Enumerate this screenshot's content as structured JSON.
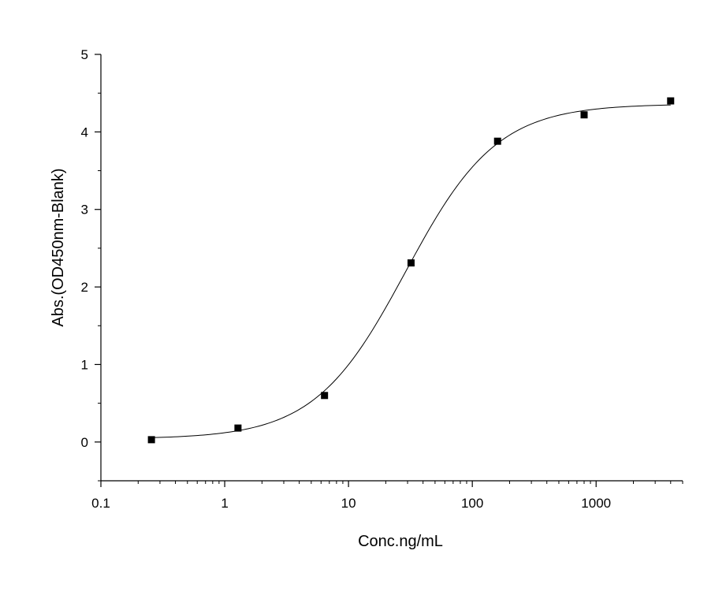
{
  "chart_data": {
    "type": "scatter",
    "xscale": "log",
    "xlim": [
      0.1,
      5000
    ],
    "ylim": [
      -0.5,
      5
    ],
    "xlabel": "Conc.ng/mL",
    "ylabel": "Abs.(OD450nm-Blank)",
    "xticks": [
      {
        "value": 0.1,
        "label": "0.1"
      },
      {
        "value": 1,
        "label": "1"
      },
      {
        "value": 10,
        "label": "10"
      },
      {
        "value": 100,
        "label": "100"
      },
      {
        "value": 1000,
        "label": "1000"
      }
    ],
    "yticks": [
      {
        "value": 0,
        "label": "0"
      },
      {
        "value": 1,
        "label": "1"
      },
      {
        "value": 2,
        "label": "2"
      },
      {
        "value": 3,
        "label": "3"
      },
      {
        "value": 4,
        "label": "4"
      },
      {
        "value": 5,
        "label": "5"
      }
    ],
    "grid": false,
    "points": [
      {
        "x": 0.256,
        "y": 0.03
      },
      {
        "x": 1.28,
        "y": 0.18
      },
      {
        "x": 6.4,
        "y": 0.6
      },
      {
        "x": 32,
        "y": 2.31
      },
      {
        "x": 160,
        "y": 3.88
      },
      {
        "x": 800,
        "y": 4.22
      },
      {
        "x": 4000,
        "y": 4.4
      }
    ],
    "fit_curve": {
      "model": "4PL",
      "bottom": 0.04,
      "top": 4.36,
      "ec50": 29,
      "hill": 1.18
    },
    "marker_color": "#000000",
    "line_color": "#000000"
  }
}
